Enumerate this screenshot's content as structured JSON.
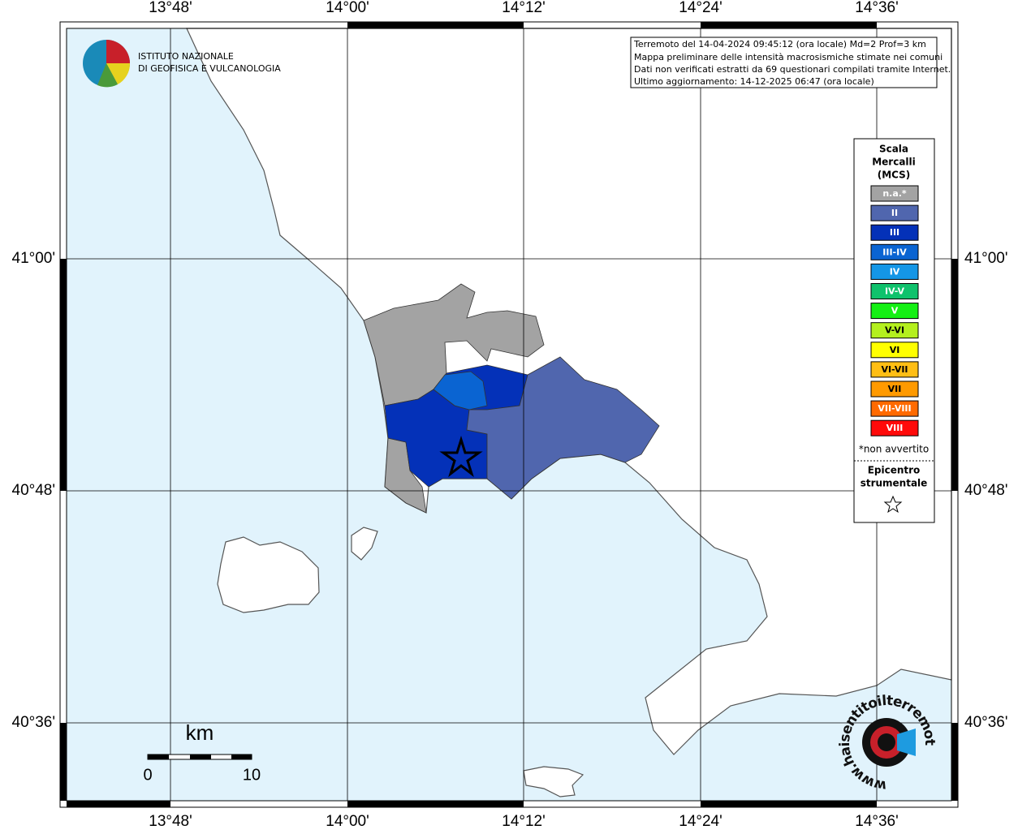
{
  "grid": {
    "lon_labels": [
      "13°48'",
      "14°00'",
      "14°12'",
      "14°24'",
      "14°36'"
    ],
    "lat_labels": [
      "41°00'",
      "40°48'",
      "40°36'"
    ]
  },
  "info_box": {
    "lines": [
      "Terremoto del 14-04-2024 09:45:12 (ora locale) Md=2 Prof=3 km",
      "Mappa preliminare delle intensità macrosismiche stimate nei comuni",
      "Dati non verificati estratti da 69 questionari compilati tramite Internet.",
      "Ultimo aggiornamento: 14-12-2025 06:47 (ora locale)"
    ]
  },
  "institute_logo": {
    "lines": [
      "ISTITUTO NAZIONALE",
      "DI GEOFISICA E VULCANOLOGIA"
    ]
  },
  "legend": {
    "title_lines": [
      "Scala",
      "Mercalli",
      "(MCS)"
    ],
    "items": [
      {
        "label": "n.a.*",
        "color": "#a3a3a3"
      },
      {
        "label": "II",
        "color": "#5066ae"
      },
      {
        "label": "III",
        "color": "#0431b8"
      },
      {
        "label": "III-IV",
        "color": "#0a64d2"
      },
      {
        "label": "IV",
        "color": "#1496e6"
      },
      {
        "label": "IV-V",
        "color": "#0fc26c"
      },
      {
        "label": "V",
        "color": "#14f014"
      },
      {
        "label": "V-VI",
        "color": "#b4f01e"
      },
      {
        "label": "VI",
        "color": "#ffff00"
      },
      {
        "label": "VI-VII",
        "color": "#ffbe14"
      },
      {
        "label": "VII",
        "color": "#ff9a00"
      },
      {
        "label": "VII-VIII",
        "color": "#ff6a00"
      },
      {
        "label": "VIII",
        "color": "#ff0a0a"
      }
    ],
    "note": "*non avvertito",
    "epicenter_lines": [
      "Epicentro",
      "strumentale"
    ]
  },
  "scale_bar": {
    "unit": "km",
    "labels": [
      "0",
      "10"
    ]
  },
  "site_logo": {
    "text": "www.haisentitoilterremoto.it"
  }
}
